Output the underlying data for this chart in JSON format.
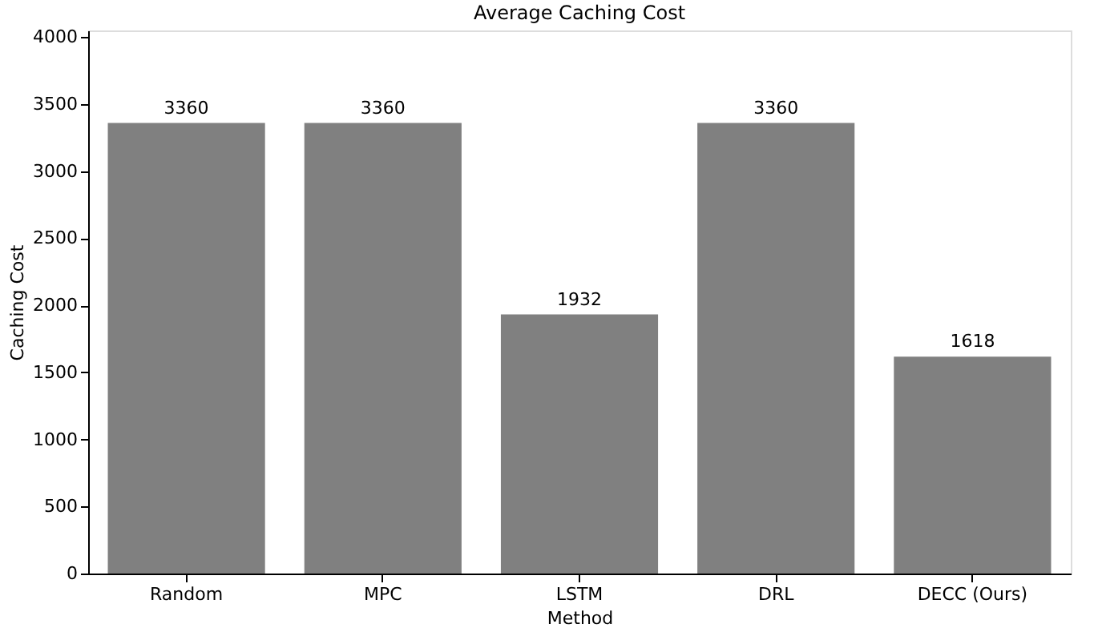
{
  "chart_data": {
    "type": "bar",
    "title": "Average Caching Cost",
    "xlabel": "Method",
    "ylabel": "Caching Cost",
    "categories": [
      "Random",
      "MPC",
      "LSTM",
      "DRL",
      "DECC (Ours)"
    ],
    "values": [
      3360,
      3360,
      1932,
      3360,
      1618
    ],
    "color": "#808080",
    "ylim": [
      0,
      4050
    ],
    "yticks": [
      0,
      500,
      1000,
      1500,
      2000,
      2500,
      3000,
      3500,
      4000
    ],
    "data_labels": true,
    "grid": false
  }
}
